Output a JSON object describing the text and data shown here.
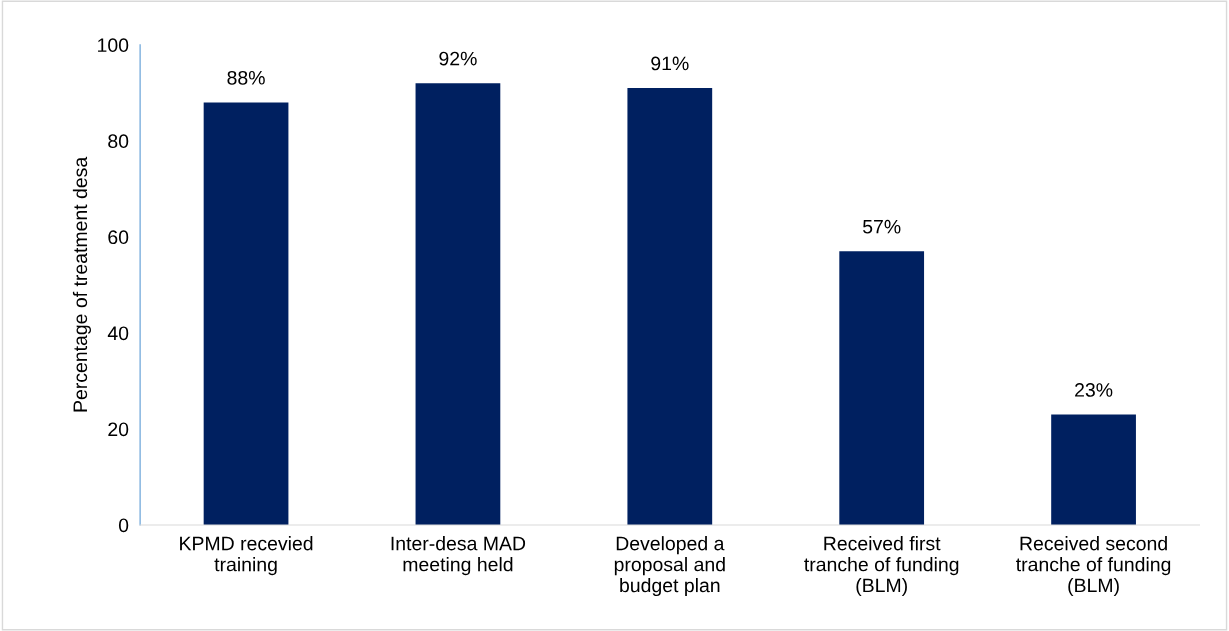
{
  "chart_data": {
    "type": "bar",
    "ylabel": "Percentage of treatment desa",
    "categories": [
      "KPMD recevied\ntraining",
      "Inter-desa MAD\nmeeting held",
      "Developed a\nproposal and\nbudget plan",
      "Received first\ntranche of funding\n(BLM)",
      "Received second\ntranche of funding\n(BLM)"
    ],
    "values": [
      88,
      92,
      91,
      57,
      23
    ],
    "value_labels": [
      "88%",
      "92%",
      "91%",
      "57%",
      "23%"
    ],
    "color": "#002060",
    "ylim": [
      0,
      100
    ],
    "yticks": [
      0,
      20,
      40,
      60,
      80,
      100
    ],
    "grid": false,
    "legend": false
  }
}
